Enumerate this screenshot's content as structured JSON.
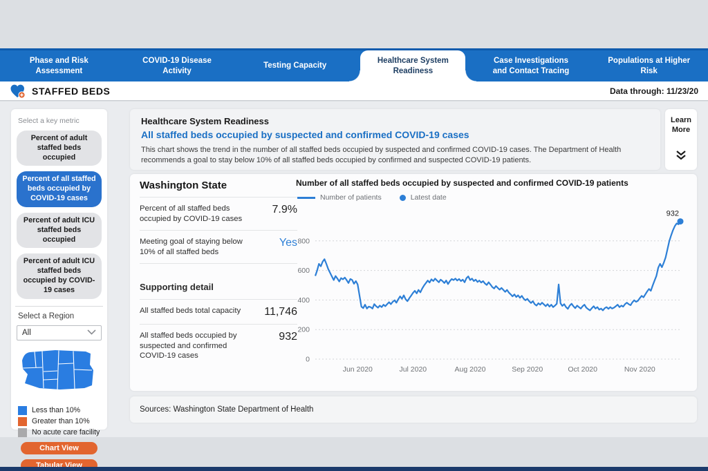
{
  "page": {
    "title": "STAFFED BEDS",
    "data_through": "Data through: 11/23/20"
  },
  "nav": {
    "tabs": [
      {
        "label": "Phase and Risk Assessment",
        "active": false
      },
      {
        "label": "COVID-19 Disease Activity",
        "active": false
      },
      {
        "label": "Testing Capacity",
        "active": false
      },
      {
        "label": "Healthcare System Readiness",
        "active": true
      },
      {
        "label": "Case Investigations and Contact Tracing",
        "active": false
      },
      {
        "label": "Populations at Higher Risk",
        "active": false
      }
    ]
  },
  "sidebar": {
    "metric_section_label": "Select a key metric",
    "metrics": [
      {
        "label": "Percent of adult staffed beds occupied",
        "selected": false
      },
      {
        "label": "Percent of all staffed beds occupied by COVID-19 cases",
        "selected": true
      },
      {
        "label": "Percent of adult ICU staffed beds occupied",
        "selected": false
      },
      {
        "label": "Percent of adult ICU staffed beds occupied by COVID-19 cases",
        "selected": false
      }
    ],
    "region_section_label": "Select a Region",
    "region_selected": "All",
    "map_legend": [
      {
        "label": "Less than 10%",
        "color": "#2a7de1"
      },
      {
        "label": "Greater than 10%",
        "color": "#e2652f"
      },
      {
        "label": "No acute care facility",
        "color": "#a9a9ab"
      }
    ],
    "view_buttons": {
      "chart": "Chart View",
      "tabular": "Tabular View"
    },
    "map_fill": "#2a7de1"
  },
  "header_panel": {
    "section_title": "Healthcare System Readiness",
    "subtitle": "All staffed beds occupied by suspected and confirmed COVID-19 cases",
    "description": "This chart shows the trend in the number of all staffed beds occupied by suspected and confirmed COVID-19 cases. The Department of Health recommends a goal to stay below 10% of all staffed beds occupied by confirmed and suspected COVID-19 patients.",
    "learn_more": "Learn More"
  },
  "stats_panel": {
    "region_title": "Washington State",
    "rows": [
      {
        "label": "Percent of all staffed beds occupied by COVID-19 cases",
        "value": "7.9%",
        "value_color": "#1f1f1f"
      },
      {
        "label": "Meeting goal of staying below 10% of all staffed beds",
        "value": "Yes",
        "value_color": "#2d7fd6"
      }
    ],
    "supporting_title": "Supporting detail",
    "supporting_rows": [
      {
        "label": "All staffed beds total capacity",
        "value": "11,746"
      },
      {
        "label": "All staffed beds occupied by suspected and confirmed COVID-19 cases",
        "value": "932"
      }
    ]
  },
  "chart": {
    "title": "Number of all staffed beds occupied by suspected and confirmed COVID-19 patients",
    "legend": [
      {
        "label": "Number of patients",
        "type": "line"
      },
      {
        "label": "Latest date",
        "type": "dot"
      }
    ]
  },
  "chart_data": {
    "type": "line",
    "title": "Number of all staffed beds occupied by suspected and confirmed COVID-19 patients",
    "line_color": "#2d7fd6",
    "start_date": "2020-05-09",
    "end_date": "2020-11-23",
    "end_label": "932",
    "ylim": [
      0,
      1000
    ],
    "y_ticks": [
      0,
      200,
      400,
      600,
      800
    ],
    "x_ticks": [
      {
        "label": "Jun 2020",
        "date": "2020-06-01"
      },
      {
        "label": "Jul 2020",
        "date": "2020-07-01"
      },
      {
        "label": "Aug 2020",
        "date": "2020-08-01"
      },
      {
        "label": "Sep 2020",
        "date": "2020-09-01"
      },
      {
        "label": "Oct 2020",
        "date": "2020-10-01"
      },
      {
        "label": "Nov 2020",
        "date": "2020-11-01"
      }
    ],
    "series_name": "Number of patients",
    "frequency": "daily",
    "values": [
      563,
      600,
      645,
      628,
      660,
      676,
      645,
      610,
      585,
      560,
      535,
      562,
      545,
      525,
      548,
      540,
      552,
      535,
      515,
      542,
      536,
      510,
      528,
      505,
      430,
      355,
      345,
      368,
      342,
      355,
      352,
      342,
      372,
      358,
      348,
      362,
      352,
      368,
      358,
      372,
      385,
      372,
      388,
      398,
      382,
      405,
      425,
      408,
      432,
      405,
      392,
      412,
      430,
      448,
      462,
      445,
      468,
      452,
      478,
      498,
      515,
      532,
      518,
      540,
      528,
      545,
      532,
      520,
      538,
      528,
      515,
      532,
      508,
      528,
      542,
      535,
      545,
      532,
      542,
      528,
      538,
      520,
      548,
      560,
      535,
      545,
      528,
      538,
      522,
      532,
      518,
      528,
      512,
      502,
      520,
      505,
      488,
      478,
      495,
      482,
      470,
      482,
      468,
      455,
      468,
      450,
      438,
      425,
      438,
      420,
      432,
      415,
      428,
      410,
      398,
      408,
      392,
      380,
      392,
      372,
      362,
      378,
      368,
      382,
      370,
      358,
      372,
      355,
      368,
      352,
      362,
      375,
      505,
      378,
      360,
      372,
      352,
      340,
      362,
      375,
      358,
      345,
      362,
      352,
      342,
      358,
      368,
      348,
      338,
      330,
      345,
      358,
      342,
      352,
      335,
      342,
      330,
      345,
      352,
      340,
      352,
      342,
      348,
      358,
      368,
      352,
      362,
      355,
      372,
      382,
      372,
      365,
      385,
      398,
      388,
      395,
      412,
      428,
      418,
      438,
      458,
      475,
      462,
      498,
      532,
      562,
      618,
      645,
      622,
      652,
      688,
      742,
      798,
      838,
      872,
      900,
      918,
      912,
      932
    ]
  },
  "sources": {
    "text": "Sources: Washington State Department of Health"
  }
}
